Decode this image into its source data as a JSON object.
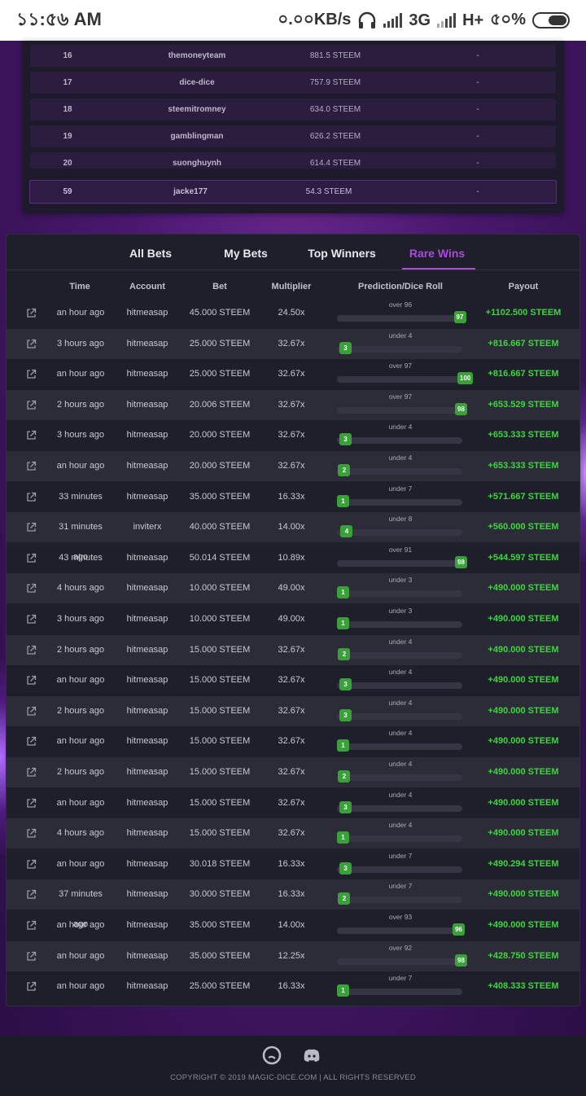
{
  "status_bar": {
    "time": "১১:৫৬ AM",
    "speed": "০.০০KB/s",
    "net1": "3G",
    "net2": "H+",
    "battery": "৫০%"
  },
  "leaderboard": {
    "rows": [
      {
        "rank": "16",
        "account": "themoneyteam",
        "amount": "881.5 STEEM",
        "extra": "-"
      },
      {
        "rank": "17",
        "account": "dice-dice",
        "amount": "757.9 STEEM",
        "extra": "-"
      },
      {
        "rank": "18",
        "account": "steemitromney",
        "amount": "634.0 STEEM",
        "extra": "-"
      },
      {
        "rank": "19",
        "account": "gamblingman",
        "amount": "626.2 STEEM",
        "extra": "-"
      },
      {
        "rank": "20",
        "account": "suonghuynh",
        "amount": "614.4 STEEM",
        "extra": "-"
      }
    ],
    "me": {
      "rank": "59",
      "account": "jacke177",
      "amount": "54.3 STEEM",
      "extra": "-"
    }
  },
  "tabs": [
    {
      "label": "All Bets",
      "active": false
    },
    {
      "label": "My Bets",
      "active": false
    },
    {
      "label": "Top Winners",
      "active": false
    },
    {
      "label": "Rare Wins",
      "active": true
    }
  ],
  "columns": {
    "time": "Time",
    "account": "Account",
    "bet": "Bet",
    "multiplier": "Multiplier",
    "prediction": "Prediction/Dice Roll",
    "payout": "Payout"
  },
  "bets": [
    {
      "time": "an hour ago",
      "account": "hitmeasap",
      "bet": "45.000 STEEM",
      "mult": "24.50x",
      "pred": "over 96",
      "roll": 97,
      "payout": "+1102.500 STEEM"
    },
    {
      "time": "3 hours ago",
      "account": "hitmeasap",
      "bet": "25.000 STEEM",
      "mult": "32.67x",
      "pred": "under 4",
      "roll": 3,
      "payout": "+816.667 STEEM"
    },
    {
      "time": "an hour ago",
      "account": "hitmeasap",
      "bet": "25.000 STEEM",
      "mult": "32.67x",
      "pred": "over 97",
      "roll": 100,
      "payout": "+816.667 STEEM"
    },
    {
      "time": "2 hours ago",
      "account": "hitmeasap",
      "bet": "20.006 STEEM",
      "mult": "32.67x",
      "pred": "over 97",
      "roll": 98,
      "payout": "+653.529 STEEM"
    },
    {
      "time": "3 hours ago",
      "account": "hitmeasap",
      "bet": "20.000 STEEM",
      "mult": "32.67x",
      "pred": "under 4",
      "roll": 3,
      "payout": "+653.333 STEEM"
    },
    {
      "time": "an hour ago",
      "account": "hitmeasap",
      "bet": "20.000 STEEM",
      "mult": "32.67x",
      "pred": "under 4",
      "roll": 2,
      "payout": "+653.333 STEEM"
    },
    {
      "time": "33 minutes ago",
      "account": "hitmeasap",
      "bet": "35.000 STEEM",
      "mult": "16.33x",
      "pred": "under 7",
      "roll": 1,
      "payout": "+571.667 STEEM"
    },
    {
      "time": "31 minutes ago",
      "account": "inviterx",
      "bet": "40.000 STEEM",
      "mult": "14.00x",
      "pred": "under 8",
      "roll": 4,
      "payout": "+560.000 STEEM"
    },
    {
      "time": "43 minutes ago",
      "account": "hitmeasap",
      "bet": "50.014 STEEM",
      "mult": "10.89x",
      "pred": "over 91",
      "roll": 98,
      "payout": "+544.597 STEEM"
    },
    {
      "time": "4 hours ago",
      "account": "hitmeasap",
      "bet": "10.000 STEEM",
      "mult": "49.00x",
      "pred": "under 3",
      "roll": 1,
      "payout": "+490.000 STEEM"
    },
    {
      "time": "3 hours ago",
      "account": "hitmeasap",
      "bet": "10.000 STEEM",
      "mult": "49.00x",
      "pred": "under 3",
      "roll": 1,
      "payout": "+490.000 STEEM"
    },
    {
      "time": "2 hours ago",
      "account": "hitmeasap",
      "bet": "15.000 STEEM",
      "mult": "32.67x",
      "pred": "under 4",
      "roll": 2,
      "payout": "+490.000 STEEM"
    },
    {
      "time": "an hour ago",
      "account": "hitmeasap",
      "bet": "15.000 STEEM",
      "mult": "32.67x",
      "pred": "under 4",
      "roll": 3,
      "payout": "+490.000 STEEM"
    },
    {
      "time": "2 hours ago",
      "account": "hitmeasap",
      "bet": "15.000 STEEM",
      "mult": "32.67x",
      "pred": "under 4",
      "roll": 3,
      "payout": "+490.000 STEEM"
    },
    {
      "time": "an hour ago",
      "account": "hitmeasap",
      "bet": "15.000 STEEM",
      "mult": "32.67x",
      "pred": "under 4",
      "roll": 1,
      "payout": "+490.000 STEEM"
    },
    {
      "time": "2 hours ago",
      "account": "hitmeasap",
      "bet": "15.000 STEEM",
      "mult": "32.67x",
      "pred": "under 4",
      "roll": 2,
      "payout": "+490.000 STEEM"
    },
    {
      "time": "an hour ago",
      "account": "hitmeasap",
      "bet": "15.000 STEEM",
      "mult": "32.67x",
      "pred": "under 4",
      "roll": 3,
      "payout": "+490.000 STEEM"
    },
    {
      "time": "4 hours ago",
      "account": "hitmeasap",
      "bet": "15.000 STEEM",
      "mult": "32.67x",
      "pred": "under 4",
      "roll": 1,
      "payout": "+490.000 STEEM"
    },
    {
      "time": "an hour ago",
      "account": "hitmeasap",
      "bet": "30.018 STEEM",
      "mult": "16.33x",
      "pred": "under 7",
      "roll": 3,
      "payout": "+490.294 STEEM"
    },
    {
      "time": "37 minutes ago",
      "account": "hitmeasap",
      "bet": "30.000 STEEM",
      "mult": "16.33x",
      "pred": "under 7",
      "roll": 2,
      "payout": "+490.000 STEEM"
    },
    {
      "time": "an hour ago",
      "account": "hitmeasap",
      "bet": "35.000 STEEM",
      "mult": "14.00x",
      "pred": "over 93",
      "roll": 96,
      "payout": "+490.000 STEEM"
    },
    {
      "time": "an hour ago",
      "account": "hitmeasap",
      "bet": "35.000 STEEM",
      "mult": "12.25x",
      "pred": "over 92",
      "roll": 98,
      "payout": "+428.750 STEEM"
    },
    {
      "time": "an hour ago",
      "account": "hitmeasap",
      "bet": "25.000 STEEM",
      "mult": "16.33x",
      "pred": "under 7",
      "roll": 1,
      "payout": "+408.333 STEEM"
    }
  ],
  "footer": {
    "copyright": "COPYRIGHT © 2019 MAGIC-DICE.COM | ALL RIGHTS RESERVED",
    "icons": [
      "steem-icon",
      "discord-icon"
    ]
  },
  "colors": {
    "accent": "#a74bdd",
    "payout": "#3fd43f",
    "roll_badge": "#3aa03a"
  }
}
